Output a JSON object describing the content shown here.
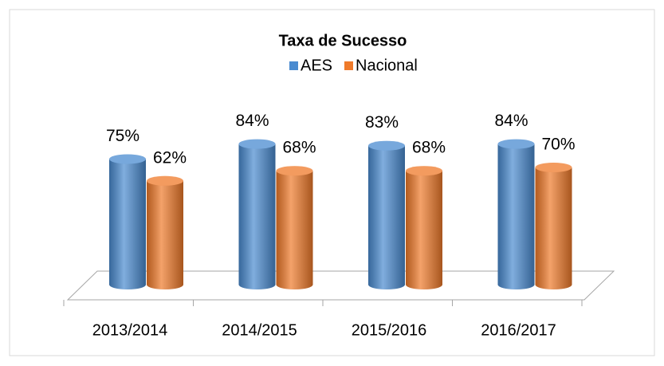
{
  "chart_data": {
    "type": "bar3d",
    "title": "Taxa de Sucesso",
    "categories": [
      "2013/2014",
      "2014/2015",
      "2015/2016",
      "2016/2017"
    ],
    "series": [
      {
        "name": "AES",
        "color": "#4a8bd0",
        "values": [
          75,
          84,
          83,
          84
        ],
        "value_labels": [
          "75%",
          "84%",
          "83%",
          "84%"
        ]
      },
      {
        "name": "Nacional",
        "color": "#ef7a2a",
        "values": [
          62,
          68,
          68,
          70
        ],
        "value_labels": [
          "62%",
          "68%",
          "68%",
          "70%"
        ]
      }
    ],
    "legend": "top"
  }
}
